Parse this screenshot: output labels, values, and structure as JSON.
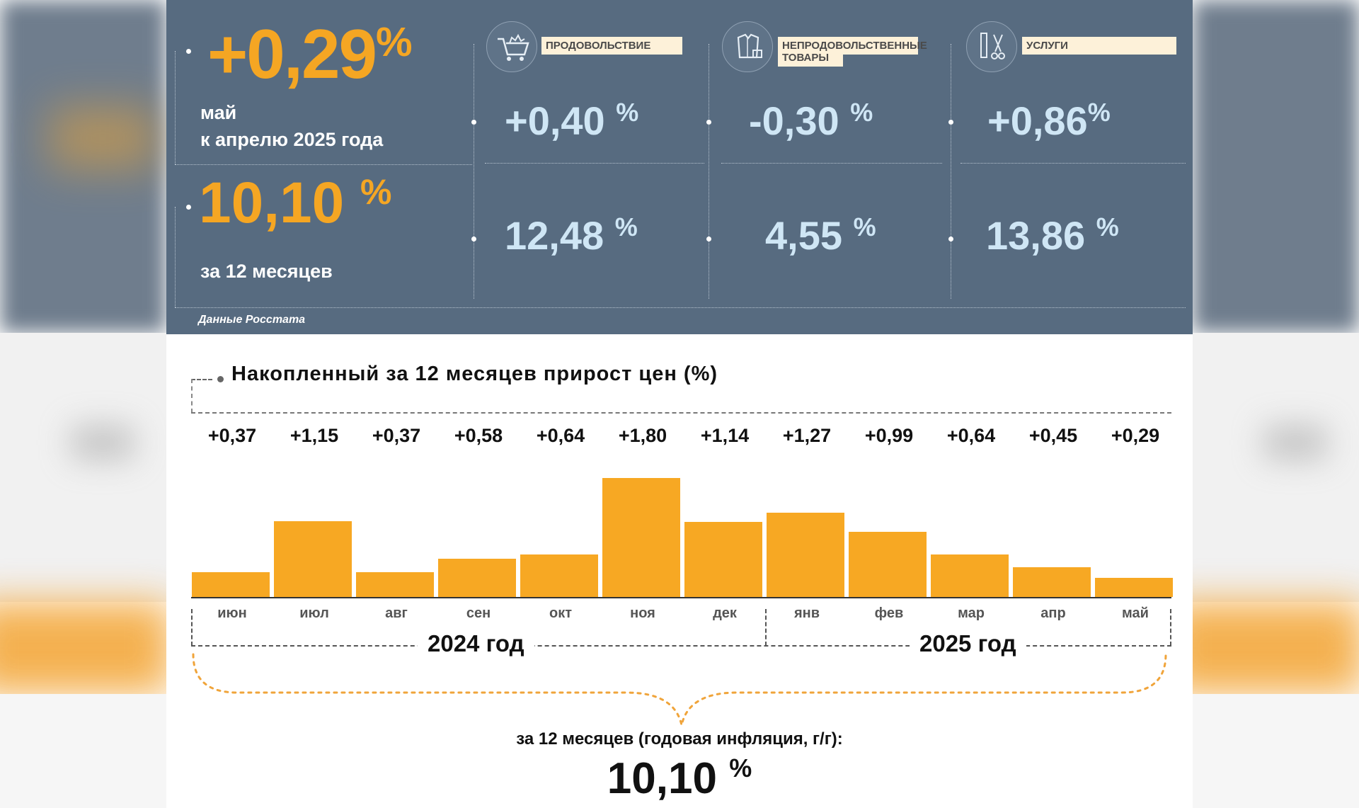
{
  "headline": {
    "monthly_value": "+0,29",
    "pct": "%",
    "monthly_caption_1": "май",
    "monthly_caption_2": "к апрелю 2025 года",
    "annual_value": "10,10",
    "annual_caption": "за 12 месяцев",
    "source": "Данные Росстата"
  },
  "categories": [
    {
      "label_1": "ПРОДОВОЛЬСТВИЕ",
      "label_2": "",
      "icon": "shopping-cart-icon",
      "monthly": "+0,40",
      "annual": "12,48"
    },
    {
      "label_1": "НЕПРОДОВОЛЬСТВЕННЫЕ",
      "label_2": "ТОВАРЫ",
      "icon": "clothes-icon",
      "monthly": "-0,30",
      "annual": "4,55"
    },
    {
      "label_1": "УСЛУГИ",
      "label_2": "",
      "icon": "scissors-comb-icon",
      "monthly": "+0,86",
      "annual": "13,86"
    }
  ],
  "chart_data": {
    "type": "bar",
    "title": "Накопленный за 12 месяцев прирост цен (%)",
    "categories": [
      "июн",
      "июл",
      "авг",
      "сен",
      "окт",
      "ноя",
      "дек",
      "янв",
      "фев",
      "мар",
      "апр",
      "май"
    ],
    "values": [
      0.37,
      1.15,
      0.37,
      0.58,
      0.64,
      1.8,
      1.14,
      1.27,
      0.99,
      0.64,
      0.45,
      0.29
    ],
    "value_labels": [
      "+0,37",
      "+1,15",
      "+0,37",
      "+0,58",
      "+0,64",
      "+1,80",
      "+1,14",
      "+1,27",
      "+0,99",
      "+0,64",
      "+0,45",
      "+0,29"
    ],
    "groups": [
      {
        "label": "2024 год",
        "months": 7
      },
      {
        "label": "2025 год",
        "months": 5
      }
    ],
    "total_caption": "за 12 месяцев (годовая инфляция, г/г):",
    "total_value": "10,10",
    "total_pct": "%",
    "color": "#f7a823"
  },
  "colors": {
    "panel": "#576b80",
    "accent_orange": "#f5a623",
    "value_blue": "#cfe6f5"
  }
}
